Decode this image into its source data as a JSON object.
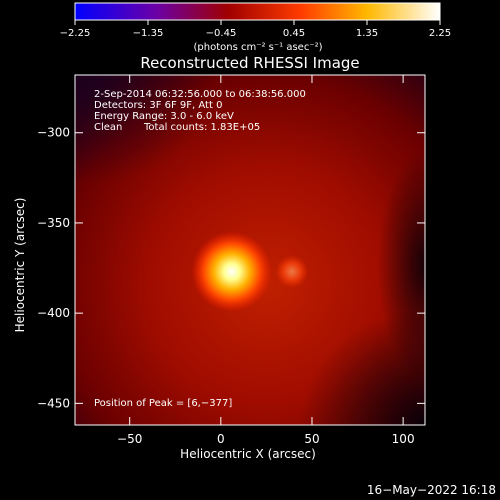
{
  "chart_data": {
    "type": "heatmap",
    "title": "Reconstructed RHESSI Image",
    "xlabel": "Heliocentric X (arcsec)",
    "ylabel": "Heliocentric Y (arcsec)",
    "xlim": [
      -80,
      112
    ],
    "ylim": [
      -462,
      -268
    ],
    "x_ticks": [
      -50,
      0,
      50,
      100
    ],
    "y_ticks": [
      -300,
      -350,
      -400,
      -450
    ],
    "x_tick_labels": [
      "−50",
      "0",
      "50",
      "100"
    ],
    "y_tick_labels": [
      "−300",
      "−350",
      "−400",
      "−450"
    ],
    "grid": false,
    "colorbar": {
      "colormap": "hot (blue-purple-red-yellow-white)",
      "range": [
        -2.25,
        2.25
      ],
      "ticks": [
        -2.25,
        -1.35,
        -0.45,
        0.45,
        1.35,
        2.25
      ],
      "tick_labels": [
        "−2.25",
        "−1.35",
        "−0.45",
        "0.45",
        "1.35",
        "2.25"
      ],
      "unit_label": "(photons cm⁻² s⁻¹ asec⁻²)"
    },
    "sources": [
      {
        "x": 6,
        "y": -377,
        "relative_intensity": 1.0
      },
      {
        "x": 39,
        "y": -377,
        "relative_intensity": 0.45
      }
    ],
    "annotations": {
      "time_range": " 2-Sep-2014 06:32:56.000 to 06:38:56.000",
      "detectors": "Detectors: 3F 6F 9F, Att 0",
      "energy_range": "Energy Range: 3.0 - 6.0 keV",
      "algorithm": "Clean",
      "total_counts": "Total counts: 1.83E+05",
      "peak_position": "Position of Peak = [6,−377]"
    }
  },
  "footer": {
    "timestamp": "16−May−2022 16:18"
  },
  "colors": {
    "background": "#000000",
    "text": "#ffffff"
  }
}
